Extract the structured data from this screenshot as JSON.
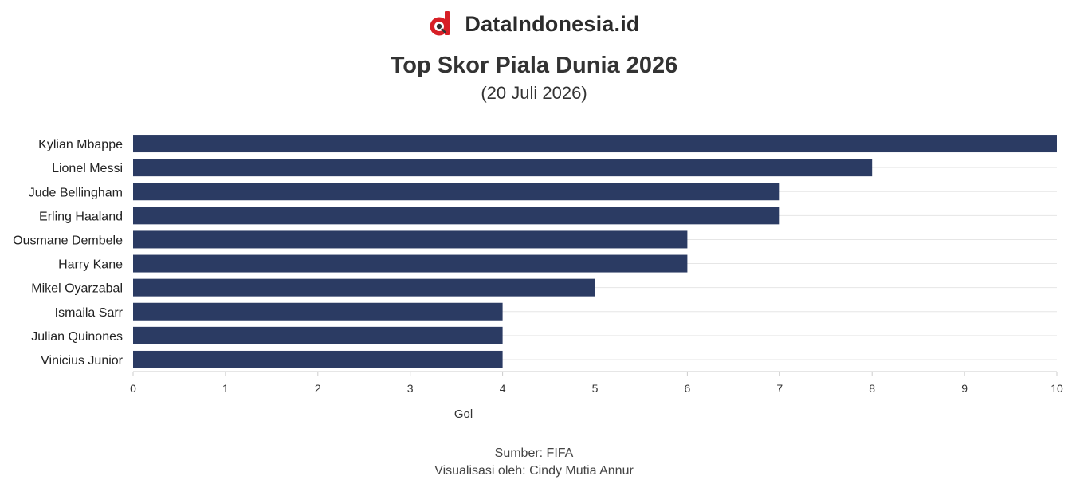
{
  "brand": {
    "name": "DataIndonesia.id",
    "logo_icon": "data-indonesia-logo-icon",
    "logo_color": "#d71f26"
  },
  "title": "Top Skor Piala Dunia 2026",
  "subtitle": "(20 Juli 2026)",
  "credits": {
    "source": "Sumber: FIFA",
    "visual": "Visualisasi oleh: Cindy Mutia Annur"
  },
  "colors": {
    "bar": "#2b3b63",
    "grid": "#e6e6e6",
    "axis": "#cccccc"
  },
  "chart_data": {
    "type": "bar",
    "orientation": "horizontal",
    "categories": [
      "Kylian Mbappe",
      "Lionel Messi",
      "Jude Bellingham",
      "Erling Haaland",
      "Ousmane Dembele",
      "Harry Kane",
      "Mikel Oyarzabal",
      "Ismaila Sarr",
      "Julian Quinones",
      "Vinicius Junior"
    ],
    "values": [
      10,
      8,
      7,
      7,
      6,
      6,
      5,
      4,
      4,
      4
    ],
    "xlabel": "Gol",
    "ylabel": "",
    "xlim": [
      0,
      10
    ],
    "xticks": [
      0,
      1,
      2,
      3,
      4,
      5,
      6,
      7,
      8,
      9,
      10
    ],
    "grid": true
  }
}
